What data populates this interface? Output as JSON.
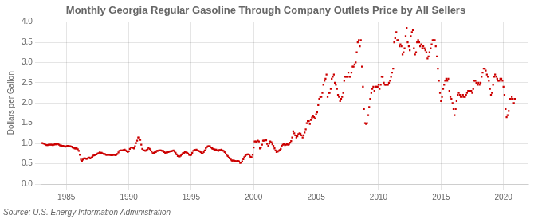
{
  "chart_data": {
    "type": "scatter",
    "title": "Monthly Georgia Regular Gasoline Through Company Outlets Price by All Sellers",
    "ylabel": "Dollars per Gallon",
    "annotations": [
      "Source: U.S. Energy Information Administration"
    ],
    "color": "#cc0000",
    "marker": "square",
    "grid": true,
    "xlim": [
      1983,
      2022
    ],
    "ylim": [
      0.0,
      4.0
    ],
    "xticks": [
      1985,
      1990,
      1995,
      2000,
      2005,
      2010,
      2015,
      2020
    ],
    "yticks": [
      {
        "value": 0.0,
        "label": "0.0"
      },
      0.5,
      {
        "value": 1.0,
        "label": "1.0"
      },
      1.5,
      {
        "value": 2.0,
        "label": "2.0"
      },
      2.5,
      {
        "value": 3.0,
        "label": "3.0"
      },
      3.5,
      {
        "value": 4.0,
        "label": "4.0"
      }
    ],
    "x": [
      1983.08,
      1983.17,
      1983.25,
      1983.33,
      1983.42,
      1983.5,
      1983.58,
      1983.67,
      1983.75,
      1983.83,
      1983.92,
      1984.0,
      1984.08,
      1984.17,
      1984.25,
      1984.33,
      1984.42,
      1984.5,
      1984.58,
      1984.67,
      1984.75,
      1984.83,
      1984.92,
      1985.0,
      1985.08,
      1985.17,
      1985.25,
      1985.33,
      1985.42,
      1985.5,
      1985.58,
      1985.67,
      1985.75,
      1985.83,
      1985.92,
      1986.0,
      1986.08,
      1986.17,
      1986.25,
      1986.33,
      1986.42,
      1986.5,
      1986.58,
      1986.67,
      1986.75,
      1986.83,
      1986.92,
      1987.0,
      1987.08,
      1987.17,
      1987.25,
      1987.33,
      1987.42,
      1987.5,
      1987.58,
      1987.67,
      1987.75,
      1987.83,
      1987.92,
      1988.0,
      1988.08,
      1988.17,
      1988.25,
      1988.33,
      1988.42,
      1988.5,
      1988.58,
      1988.67,
      1988.75,
      1988.83,
      1988.92,
      1989.0,
      1989.08,
      1989.17,
      1989.25,
      1989.33,
      1989.42,
      1989.5,
      1989.58,
      1989.67,
      1989.75,
      1989.83,
      1989.92,
      1990.0,
      1990.08,
      1990.17,
      1990.25,
      1990.33,
      1990.42,
      1990.5,
      1990.58,
      1990.67,
      1990.75,
      1990.83,
      1990.92,
      1991.0,
      1991.08,
      1991.17,
      1991.25,
      1991.33,
      1991.42,
      1991.5,
      1991.58,
      1991.67,
      1991.75,
      1991.83,
      1991.92,
      1992.0,
      1992.08,
      1992.17,
      1992.25,
      1992.33,
      1992.42,
      1992.5,
      1992.58,
      1992.67,
      1992.75,
      1992.83,
      1992.92,
      1993.0,
      1993.08,
      1993.17,
      1993.25,
      1993.33,
      1993.42,
      1993.5,
      1993.58,
      1993.67,
      1993.75,
      1993.83,
      1993.92,
      1994.0,
      1994.08,
      1994.17,
      1994.25,
      1994.33,
      1994.42,
      1994.5,
      1994.58,
      1994.67,
      1994.75,
      1994.83,
      1994.92,
      1995.0,
      1995.08,
      1995.17,
      1995.25,
      1995.33,
      1995.42,
      1995.5,
      1995.58,
      1995.67,
      1995.75,
      1995.83,
      1995.92,
      1996.0,
      1996.08,
      1996.17,
      1996.25,
      1996.33,
      1996.42,
      1996.5,
      1996.58,
      1996.67,
      1996.75,
      1996.83,
      1996.92,
      1997.0,
      1997.08,
      1997.17,
      1997.25,
      1997.33,
      1997.42,
      1997.5,
      1997.58,
      1997.67,
      1997.75,
      1997.83,
      1997.92,
      1998.0,
      1998.08,
      1998.17,
      1998.25,
      1998.33,
      1998.42,
      1998.5,
      1998.58,
      1998.67,
      1998.75,
      1998.83,
      1998.92,
      1999.0,
      1999.08,
      1999.17,
      1999.25,
      1999.33,
      1999.42,
      1999.5,
      1999.58,
      1999.67,
      1999.75,
      1999.83,
      1999.92,
      2000.0,
      2000.08,
      2000.17,
      2000.25,
      2000.33,
      2000.42,
      2000.5,
      2000.58,
      2000.67,
      2000.75,
      2000.83,
      2000.92,
      2001.0,
      2001.08,
      2001.17,
      2001.25,
      2001.33,
      2001.42,
      2001.5,
      2001.58,
      2001.67,
      2001.75,
      2001.83,
      2001.92,
      2002.0,
      2002.08,
      2002.17,
      2002.25,
      2002.33,
      2002.42,
      2002.5,
      2002.58,
      2002.67,
      2002.75,
      2002.83,
      2002.92,
      2003.0,
      2003.08,
      2003.17,
      2003.25,
      2003.33,
      2003.42,
      2003.5,
      2003.58,
      2003.67,
      2003.75,
      2003.83,
      2003.92,
      2004.0,
      2004.08,
      2004.17,
      2004.25,
      2004.33,
      2004.42,
      2004.5,
      2004.58,
      2004.67,
      2004.75,
      2004.83,
      2004.92,
      2005.0,
      2005.08,
      2005.17,
      2005.25,
      2005.33,
      2005.42,
      2005.5,
      2005.58,
      2005.67,
      2005.75,
      2005.83,
      2005.92,
      2006.0,
      2006.08,
      2006.17,
      2006.25,
      2006.33,
      2006.42,
      2006.5,
      2006.58,
      2006.67,
      2006.75,
      2006.83,
      2006.92,
      2007.0,
      2007.08,
      2007.17,
      2007.25,
      2007.33,
      2007.42,
      2007.5,
      2007.58,
      2007.67,
      2007.75,
      2007.83,
      2007.92,
      2008.0,
      2008.08,
      2008.17,
      2008.25,
      2008.33,
      2008.42,
      2008.5,
      2008.58,
      2008.67,
      2008.75,
      2008.83,
      2008.92,
      2009.0,
      2009.08,
      2009.17,
      2009.25,
      2009.33,
      2009.42,
      2009.5,
      2009.58,
      2009.67,
      2009.75,
      2009.83,
      2009.92,
      2010.0,
      2010.08,
      2010.17,
      2010.25,
      2010.33,
      2010.42,
      2010.5,
      2010.58,
      2010.67,
      2010.75,
      2010.83,
      2010.92,
      2011.0,
      2011.08,
      2011.17,
      2011.25,
      2011.33,
      2011.42,
      2011.5,
      2011.58,
      2011.67,
      2011.75,
      2011.83,
      2011.92,
      2012.0,
      2012.08,
      2012.17,
      2012.25,
      2012.33,
      2012.42,
      2012.5,
      2012.58,
      2012.67,
      2012.75,
      2012.83,
      2012.92,
      2013.0,
      2013.08,
      2013.17,
      2013.25,
      2013.33,
      2013.42,
      2013.5,
      2013.58,
      2013.67,
      2013.75,
      2013.83,
      2013.92,
      2014.0,
      2014.08,
      2014.17,
      2014.25,
      2014.33,
      2014.42,
      2014.5,
      2014.58,
      2014.67,
      2014.75,
      2014.83,
      2014.92,
      2015.0,
      2015.08,
      2015.17,
      2015.25,
      2015.33,
      2015.42,
      2015.5,
      2015.58,
      2015.67,
      2015.75,
      2015.83,
      2015.92,
      2016.0,
      2016.08,
      2016.17,
      2016.25,
      2016.33,
      2016.42,
      2016.5,
      2016.58,
      2016.67,
      2016.75,
      2016.83,
      2016.92,
      2017.0,
      2017.08,
      2017.17,
      2017.25,
      2017.33,
      2017.42,
      2017.5,
      2017.58,
      2017.67,
      2017.75,
      2017.83,
      2017.92,
      2018.0,
      2018.08,
      2018.17,
      2018.25,
      2018.33,
      2018.42,
      2018.5,
      2018.58,
      2018.67,
      2018.75,
      2018.83,
      2018.92,
      2019.0,
      2019.08,
      2019.17,
      2019.25,
      2019.33,
      2019.42,
      2019.5,
      2019.58,
      2019.67,
      2019.75,
      2019.83,
      2019.92,
      2020.0,
      2020.08,
      2020.17,
      2020.25,
      2020.33,
      2020.42,
      2020.5,
      2020.58,
      2020.67,
      2020.75,
      2020.83,
      2020.92
    ],
    "values": [
      1.01,
      1.0,
      0.99,
      0.97,
      0.96,
      0.96,
      0.97,
      0.97,
      0.97,
      0.97,
      0.96,
      0.97,
      0.98,
      0.98,
      0.98,
      0.99,
      0.97,
      0.95,
      0.95,
      0.94,
      0.94,
      0.93,
      0.92,
      0.93,
      0.94,
      0.94,
      0.93,
      0.93,
      0.92,
      0.9,
      0.89,
      0.88,
      0.88,
      0.88,
      0.86,
      0.82,
      0.72,
      0.6,
      0.57,
      0.6,
      0.63,
      0.63,
      0.62,
      0.62,
      0.64,
      0.65,
      0.63,
      0.65,
      0.67,
      0.7,
      0.71,
      0.72,
      0.73,
      0.75,
      0.76,
      0.78,
      0.77,
      0.77,
      0.75,
      0.74,
      0.74,
      0.72,
      0.72,
      0.72,
      0.72,
      0.72,
      0.71,
      0.71,
      0.72,
      0.72,
      0.71,
      0.72,
      0.74,
      0.78,
      0.82,
      0.83,
      0.83,
      0.83,
      0.84,
      0.85,
      0.83,
      0.81,
      0.79,
      0.81,
      0.87,
      0.9,
      0.9,
      0.89,
      0.88,
      0.93,
      1.01,
      1.07,
      1.15,
      1.15,
      1.09,
      0.97,
      0.87,
      0.83,
      0.83,
      0.82,
      0.84,
      0.86,
      0.89,
      0.87,
      0.83,
      0.8,
      0.76,
      0.77,
      0.78,
      0.79,
      0.82,
      0.82,
      0.83,
      0.83,
      0.83,
      0.82,
      0.82,
      0.79,
      0.77,
      0.78,
      0.78,
      0.79,
      0.8,
      0.81,
      0.81,
      0.82,
      0.83,
      0.8,
      0.77,
      0.73,
      0.69,
      0.68,
      0.68,
      0.7,
      0.73,
      0.76,
      0.77,
      0.79,
      0.78,
      0.77,
      0.75,
      0.72,
      0.71,
      0.72,
      0.77,
      0.82,
      0.84,
      0.84,
      0.85,
      0.83,
      0.82,
      0.81,
      0.79,
      0.77,
      0.75,
      0.79,
      0.83,
      0.88,
      0.91,
      0.93,
      0.93,
      0.93,
      0.9,
      0.88,
      0.87,
      0.86,
      0.85,
      0.85,
      0.83,
      0.82,
      0.84,
      0.84,
      0.85,
      0.83,
      0.82,
      0.79,
      0.75,
      0.72,
      0.69,
      0.65,
      0.63,
      0.6,
      0.58,
      0.58,
      0.58,
      0.57,
      0.56,
      0.57,
      0.57,
      0.56,
      0.52,
      0.53,
      0.56,
      0.61,
      0.66,
      0.69,
      0.72,
      0.73,
      0.73,
      0.7,
      0.67,
      0.66,
      0.72,
      0.9,
      1.05,
      1.05,
      1.03,
      1.07,
      1.05,
      0.88,
      0.9,
      0.97,
      1.07,
      1.07,
      1.1,
      1.08,
      0.99,
      0.94,
      1.0,
      1.05,
      1.03,
      0.98,
      0.94,
      0.88,
      0.83,
      0.79,
      0.8,
      0.82,
      0.84,
      0.87,
      0.94,
      0.97,
      0.98,
      0.96,
      0.97,
      0.98,
      0.97,
      0.98,
      1.02,
      1.06,
      1.15,
      1.3,
      1.25,
      1.2,
      1.15,
      1.18,
      1.23,
      1.25,
      1.24,
      1.2,
      1.15,
      1.2,
      1.27,
      1.35,
      1.5,
      1.55,
      1.55,
      1.48,
      1.58,
      1.64,
      1.67,
      1.65,
      1.62,
      1.72,
      1.77,
      1.95,
      2.1,
      2.15,
      2.15,
      2.25,
      2.45,
      2.55,
      2.6,
      2.7,
      2.15,
      2.25,
      2.25,
      2.35,
      2.6,
      2.65,
      2.7,
      2.5,
      2.45,
      2.35,
      2.2,
      2.15,
      2.05,
      2.1,
      2.15,
      2.25,
      2.55,
      2.65,
      2.65,
      2.65,
      2.75,
      2.65,
      2.65,
      2.75,
      2.9,
      2.9,
      2.95,
      3.0,
      3.25,
      3.5,
      3.55,
      3.4,
      3.55,
      2.9,
      2.4,
      1.85,
      1.5,
      1.48,
      1.5,
      1.7,
      1.9,
      2.1,
      2.25,
      2.35,
      2.4,
      2.3,
      2.4,
      2.4,
      2.4,
      2.45,
      2.35,
      2.45,
      2.65,
      2.65,
      2.5,
      2.45,
      2.45,
      2.45,
      2.45,
      2.5,
      2.55,
      2.65,
      2.75,
      2.85,
      3.5,
      3.6,
      3.75,
      3.55,
      3.55,
      3.4,
      3.45,
      3.4,
      3.2,
      3.25,
      3.35,
      3.65,
      3.85,
      3.5,
      3.4,
      3.3,
      3.65,
      3.75,
      3.8,
      3.35,
      3.2,
      3.25,
      3.5,
      3.55,
      3.5,
      3.4,
      3.45,
      3.35,
      3.4,
      3.35,
      3.3,
      3.25,
      3.1,
      3.15,
      3.25,
      3.35,
      3.45,
      3.55,
      3.55,
      3.55,
      3.4,
      3.15,
      2.85,
      2.55,
      2.25,
      2.05,
      2.15,
      2.35,
      2.45,
      2.55,
      2.6,
      2.55,
      2.6,
      2.3,
      2.15,
      2.1,
      2.0,
      1.85,
      1.7,
      1.85,
      2.05,
      2.2,
      2.25,
      2.2,
      2.15,
      2.15,
      2.2,
      2.15,
      2.15,
      2.2,
      2.25,
      2.3,
      2.3,
      2.3,
      2.3,
      2.25,
      2.35,
      2.55,
      2.55,
      2.5,
      2.45,
      2.5,
      2.45,
      2.5,
      2.65,
      2.75,
      2.85,
      2.85,
      2.8,
      2.7,
      2.65,
      2.55,
      2.35,
      2.2,
      2.25,
      2.45,
      2.65,
      2.7,
      2.65,
      2.6,
      2.55,
      2.55,
      2.6,
      2.6,
      2.55,
      2.4,
      2.2,
      1.85,
      1.65,
      1.7,
      1.8,
      2.1,
      2.1,
      2.15,
      2.1,
      2.0,
      2.1
    ]
  }
}
